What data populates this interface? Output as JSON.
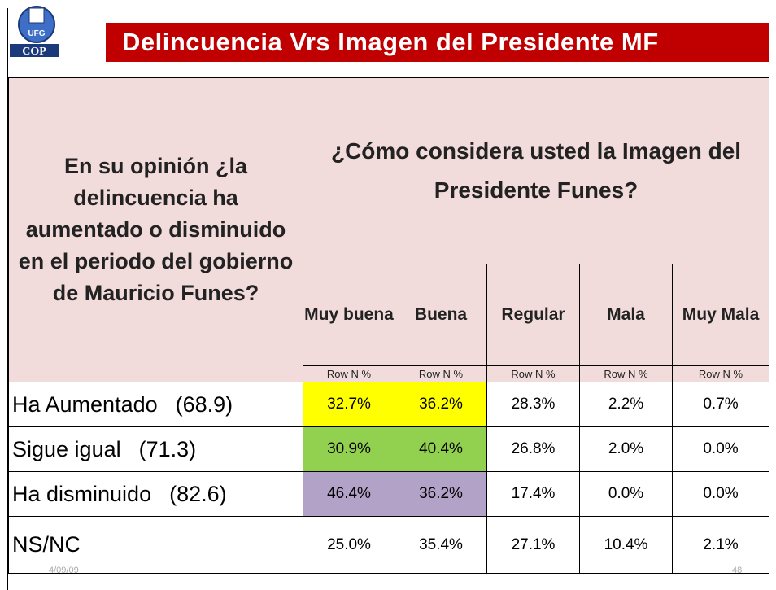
{
  "logo": {
    "top": "UFG",
    "bottom": "COP"
  },
  "header": {
    "title": "Delincuencia Vrs Imagen del Presidente MF"
  },
  "table": {
    "question": "En su opinión ¿la delincuencia ha aumentado o disminuido en el periodo del gobierno de Mauricio Funes?",
    "subquestion": "¿Cómo considera usted la Imagen del Presidente Funes?",
    "columns": [
      "Muy buena",
      "Buena",
      "Regular",
      "Mala",
      "Muy Mala"
    ],
    "unit_labels": [
      "Row N %",
      "Row N %",
      "Row N %",
      "Row N %",
      "Row N %"
    ],
    "rows": [
      {
        "label": "Ha Aumentado",
        "score": "(68.9)",
        "values": [
          "32.7%",
          "36.2%",
          "28.3%",
          "2.2%",
          "0.7%"
        ]
      },
      {
        "label": "Sigue igual",
        "score": "(71.3)",
        "values": [
          "30.9%",
          "40.4%",
          "26.8%",
          "2.0%",
          "0.0%"
        ]
      },
      {
        "label": "Ha disminuido",
        "score": "(82.6)",
        "values": [
          "46.4%",
          "36.2%",
          "17.4%",
          "0.0%",
          "0.0%"
        ]
      },
      {
        "label": "NS/NC",
        "values": [
          "25.0%",
          "35.4%",
          "27.1%",
          "10.4%",
          "2.1%"
        ]
      }
    ]
  },
  "footer": {
    "date": "4/09/09",
    "page": "48"
  }
}
